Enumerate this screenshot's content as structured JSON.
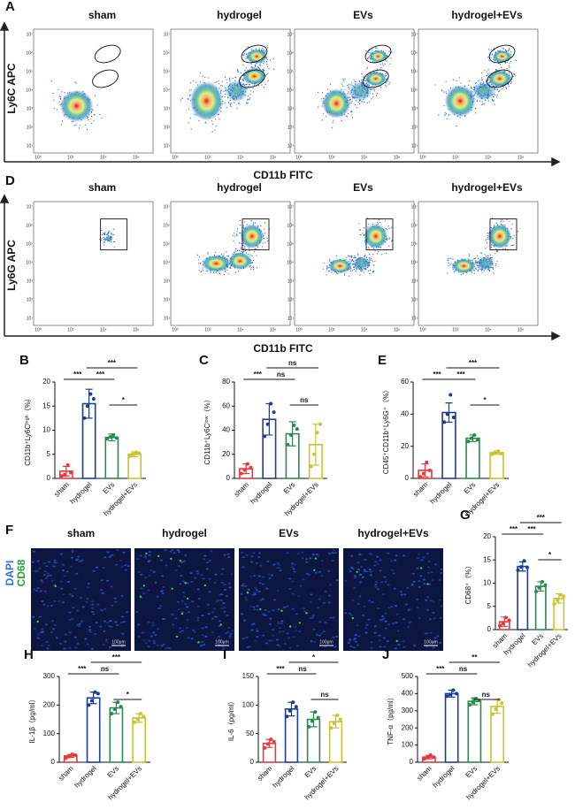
{
  "flow_panels": [
    {
      "letter": "A",
      "groups": [
        "sham",
        "hydrogel",
        "EVs",
        "hydrogel+EVs"
      ],
      "y_label": "Ly6C APC",
      "x_label": "CD11b FITC",
      "x_ticks": [
        "10⁰",
        "10²",
        "10⁴",
        "10⁶"
      ],
      "y_ticks": [
        "10¹",
        "10²",
        "10³",
        "10⁴",
        "10⁵",
        "10⁶",
        "10⁷"
      ]
    },
    {
      "letter": "D",
      "groups": [
        "sham",
        "hydrogel",
        "EVs",
        "hydrogel+EVs"
      ],
      "y_label": "Ly6G APC",
      "x_label": "CD11b FITC",
      "x_ticks": [
        "10⁰",
        "10²",
        "10⁴",
        "10⁶"
      ],
      "y_ticks": [
        "10¹",
        "10²",
        "10³",
        "10⁴",
        "10⁵",
        "10⁶",
        "10⁷"
      ]
    }
  ],
  "if_panel": {
    "letter": "F",
    "groups": [
      "sham",
      "hydrogel",
      "EVs",
      "hydrogel+EVs"
    ],
    "stains": [
      "DAPI",
      "CD68"
    ],
    "scale_bar": "100μm"
  },
  "chart_data": [
    {
      "type": "bar",
      "letter": "B",
      "y_label": "CD11b⁺Ly6Cʰⁱᵍʰ（%）",
      "categories": [
        "sham",
        "hydrogel",
        "EVs",
        "hydrogel+EVs"
      ],
      "values": [
        1.5,
        15.5,
        8.5,
        5
      ],
      "errors": [
        1,
        3,
        0.7,
        0.5
      ],
      "points": [
        [
          0.5,
          0.8,
          2.8,
          1.2
        ],
        [
          12.5,
          15,
          17.5,
          16.5
        ],
        [
          8.2,
          8.6,
          9.0,
          8.4
        ],
        [
          4.6,
          5.0,
          5.4,
          5.2
        ]
      ],
      "colors": [
        "#e8383d",
        "#1d3c96",
        "#2a8a4e",
        "#c9c42f"
      ],
      "ylim": [
        0,
        20
      ],
      "yticks": [
        0,
        5,
        10,
        15,
        20
      ],
      "annotations": [
        {
          "between": [
            "sham",
            "hydrogel"
          ],
          "label": "***"
        },
        {
          "between": [
            "hydrogel",
            "EVs"
          ],
          "label": "***"
        },
        {
          "between": [
            "hydrogel",
            "hydrogel+EVs"
          ],
          "label": "***"
        },
        {
          "between": [
            "EVs",
            "hydrogel+EVs"
          ],
          "label": "*"
        }
      ]
    },
    {
      "type": "bar",
      "letter": "C",
      "y_label": "CD11b⁺Ly6Cˡᵒʷ（%）",
      "categories": [
        "sham",
        "hydrogel",
        "EVs",
        "hydrogel+EVs"
      ],
      "values": [
        8,
        49,
        37,
        28
      ],
      "errors": [
        4,
        13,
        10,
        17
      ],
      "points": [
        [
          4,
          7,
          12,
          9
        ],
        [
          35,
          45,
          62,
          55
        ],
        [
          28,
          36,
          44,
          41
        ],
        [
          10,
          20,
          38,
          45
        ]
      ],
      "colors": [
        "#e8383d",
        "#1d3c96",
        "#2a8a4e",
        "#c9c42f"
      ],
      "ylim": [
        0,
        80
      ],
      "yticks": [
        0,
        20,
        40,
        60,
        80
      ],
      "annotations": [
        {
          "between": [
            "sham",
            "hydrogel"
          ],
          "label": "***"
        },
        {
          "between": [
            "hydrogel",
            "EVs"
          ],
          "label": "ns"
        },
        {
          "between": [
            "hydrogel",
            "hydrogel+EVs"
          ],
          "label": "ns"
        },
        {
          "between": [
            "EVs",
            "hydrogel+EVs"
          ],
          "label": "ns"
        }
      ]
    },
    {
      "type": "bar",
      "letter": "E",
      "y_label": "CD45⁺CD11b⁺Ly6G⁺（%）",
      "categories": [
        "sham",
        "hydrogel",
        "EVs",
        "hydrogel+EVs"
      ],
      "values": [
        5,
        41,
        25,
        16
      ],
      "errors": [
        4,
        6,
        2,
        1
      ],
      "points": [
        [
          1,
          3,
          10,
          5
        ],
        [
          35,
          40,
          52,
          38
        ],
        [
          23,
          25,
          27,
          24
        ],
        [
          15,
          16,
          17,
          15.5
        ]
      ],
      "colors": [
        "#e8383d",
        "#1d3c96",
        "#2a8a4e",
        "#c9c42f"
      ],
      "ylim": [
        0,
        60
      ],
      "yticks": [
        0,
        20,
        40,
        60
      ],
      "annotations": [
        {
          "between": [
            "sham",
            "hydrogel"
          ],
          "label": "***"
        },
        {
          "between": [
            "hydrogel",
            "EVs"
          ],
          "label": "***"
        },
        {
          "between": [
            "hydrogel",
            "hydrogel+EVs"
          ],
          "label": "***"
        },
        {
          "between": [
            "EVs",
            "hydrogel+EVs"
          ],
          "label": "*"
        }
      ]
    },
    {
      "type": "bar",
      "letter": "G",
      "y_label": "CD68⁺（%）",
      "categories": [
        "sham",
        "hydrogel",
        "EVs",
        "hydrogel+EVs"
      ],
      "values": [
        1.7,
        13.6,
        9.3,
        6.7
      ],
      "errors": [
        1,
        1,
        1,
        1
      ],
      "points": [
        [
          0.8,
          1.3,
          2.6,
          2.0
        ],
        [
          12.8,
          13.5,
          14.8,
          13.4
        ],
        [
          8.2,
          9.0,
          10.3,
          9.6
        ],
        [
          5.5,
          6.3,
          7.5,
          7.2
        ]
      ],
      "colors": [
        "#e8383d",
        "#1d3c96",
        "#2a8a4e",
        "#c9c42f"
      ],
      "ylim": [
        0,
        20
      ],
      "yticks": [
        0,
        5,
        10,
        15,
        20
      ],
      "annotations": [
        {
          "between": [
            "sham",
            "hydrogel"
          ],
          "label": "***"
        },
        {
          "between": [
            "hydrogel",
            "EVs"
          ],
          "label": "***"
        },
        {
          "between": [
            "hydrogel",
            "hydrogel+EVs"
          ],
          "label": "***"
        },
        {
          "between": [
            "EVs",
            "hydrogel+EVs"
          ],
          "label": "*"
        }
      ]
    },
    {
      "type": "bar",
      "letter": "H",
      "y_label": "IL-1β（pg/ml）",
      "categories": [
        "sham",
        "hydrogel",
        "EVs",
        "hydrogel+EVs"
      ],
      "values": [
        22,
        225,
        190,
        155
      ],
      "errors": [
        5,
        20,
        20,
        15
      ],
      "points": [
        [
          15,
          20,
          28,
          25
        ],
        [
          200,
          215,
          245,
          240
        ],
        [
          170,
          185,
          210,
          195
        ],
        [
          140,
          150,
          170,
          160
        ]
      ],
      "colors": [
        "#e8383d",
        "#1d3c96",
        "#2a8a4e",
        "#c9c42f"
      ],
      "ylim": [
        0,
        300
      ],
      "yticks": [
        0,
        100,
        200,
        300
      ],
      "annotations": [
        {
          "between": [
            "sham",
            "hydrogel"
          ],
          "label": "***"
        },
        {
          "between": [
            "hydrogel",
            "EVs"
          ],
          "label": "ns"
        },
        {
          "between": [
            "hydrogel",
            "hydrogel+EVs"
          ],
          "label": "***"
        },
        {
          "between": [
            "EVs",
            "hydrogel+EVs"
          ],
          "label": "*"
        }
      ]
    },
    {
      "type": "bar",
      "letter": "I",
      "y_label": "IL-6（pg/ml）",
      "categories": [
        "sham",
        "hydrogel",
        "EVs",
        "hydrogel+EVs"
      ],
      "values": [
        33,
        93,
        75,
        71
      ],
      "errors": [
        7,
        12,
        13,
        11
      ],
      "points": [
        [
          25,
          32,
          40,
          36
        ],
        [
          80,
          90,
          105,
          97
        ],
        [
          62,
          72,
          88,
          78
        ],
        [
          60,
          68,
          82,
          75
        ]
      ],
      "colors": [
        "#e8383d",
        "#1d3c96",
        "#2a8a4e",
        "#c9c42f"
      ],
      "ylim": [
        0,
        150
      ],
      "yticks": [
        0,
        50,
        100,
        150
      ],
      "annotations": [
        {
          "between": [
            "sham",
            "hydrogel"
          ],
          "label": "***"
        },
        {
          "between": [
            "hydrogel",
            "EVs"
          ],
          "label": "ns"
        },
        {
          "between": [
            "hydrogel",
            "hydrogel+EVs"
          ],
          "label": "*"
        },
        {
          "between": [
            "EVs",
            "hydrogel+EVs"
          ],
          "label": "ns"
        }
      ]
    },
    {
      "type": "bar",
      "letter": "J",
      "y_label": "TNF-α（pg/ml）",
      "categories": [
        "sham",
        "hydrogel",
        "EVs",
        "hydrogel+EVs"
      ],
      "values": [
        30,
        400,
        355,
        325
      ],
      "errors": [
        10,
        20,
        20,
        40
      ],
      "points": [
        [
          20,
          28,
          42,
          30
        ],
        [
          385,
          395,
          420,
          400
        ],
        [
          335,
          350,
          372,
          360
        ],
        [
          280,
          310,
          365,
          345
        ]
      ],
      "colors": [
        "#e8383d",
        "#1d3c96",
        "#2a8a4e",
        "#c9c42f"
      ],
      "ylim": [
        0,
        500
      ],
      "yticks": [
        0,
        100,
        200,
        300,
        400,
        500
      ],
      "annotations": [
        {
          "between": [
            "sham",
            "hydrogel"
          ],
          "label": "***"
        },
        {
          "between": [
            "hydrogel",
            "EVs"
          ],
          "label": "ns"
        },
        {
          "between": [
            "hydrogel",
            "hydrogel+EVs"
          ],
          "label": "**"
        },
        {
          "between": [
            "EVs",
            "hydrogel+EVs"
          ],
          "label": "ns"
        }
      ]
    }
  ]
}
